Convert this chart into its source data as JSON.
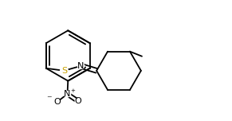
{
  "background": "#ffffff",
  "line_color": "#000000",
  "S_color": "#c8a000",
  "line_width": 1.3,
  "font_size": 8.0,
  "fig_width": 2.91,
  "fig_height": 1.52,
  "dpi": 100,
  "xlim": [
    -0.3,
    3.0
  ],
  "ylim": [
    -0.7,
    1.3
  ]
}
